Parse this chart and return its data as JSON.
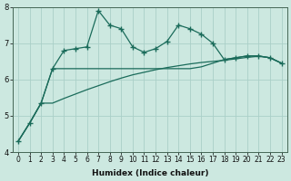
{
  "xlabel": "Humidex (Indice chaleur)",
  "x": [
    0,
    1,
    2,
    3,
    4,
    5,
    6,
    7,
    8,
    9,
    10,
    11,
    12,
    13,
    14,
    15,
    16,
    17,
    18,
    19,
    20,
    21,
    22,
    23
  ],
  "main_line": [
    4.3,
    4.8,
    5.35,
    6.3,
    6.8,
    6.85,
    6.9,
    7.9,
    7.5,
    7.4,
    6.9,
    6.75,
    6.85,
    7.05,
    7.5,
    7.4,
    7.25,
    7.0,
    6.55,
    6.6,
    6.65,
    6.65,
    6.6,
    6.45
  ],
  "upper_line": [
    4.3,
    4.8,
    5.35,
    6.3,
    6.3,
    6.3,
    6.3,
    6.3,
    6.3,
    6.3,
    6.3,
    6.3,
    6.3,
    6.3,
    6.3,
    6.3,
    6.35,
    6.45,
    6.55,
    6.6,
    6.65,
    6.65,
    6.6,
    6.45
  ],
  "lower_line": [
    4.3,
    4.8,
    5.35,
    5.35,
    5.48,
    5.6,
    5.72,
    5.83,
    5.94,
    6.04,
    6.13,
    6.2,
    6.27,
    6.33,
    6.38,
    6.43,
    6.47,
    6.5,
    6.53,
    6.57,
    6.61,
    6.64,
    6.6,
    6.45
  ],
  "line_color": "#1a6b5a",
  "bg_color": "#cce8e0",
  "grid_color": "#aacfc8",
  "ylim": [
    4.0,
    8.0
  ],
  "xlim": [
    -0.5,
    23.5
  ],
  "yticks": [
    4,
    5,
    6,
    7,
    8
  ],
  "xticks": [
    0,
    1,
    2,
    3,
    4,
    5,
    6,
    7,
    8,
    9,
    10,
    11,
    12,
    13,
    14,
    15,
    16,
    17,
    18,
    19,
    20,
    21,
    22,
    23
  ],
  "tick_fontsize": 5.5,
  "xlabel_fontsize": 6.5
}
